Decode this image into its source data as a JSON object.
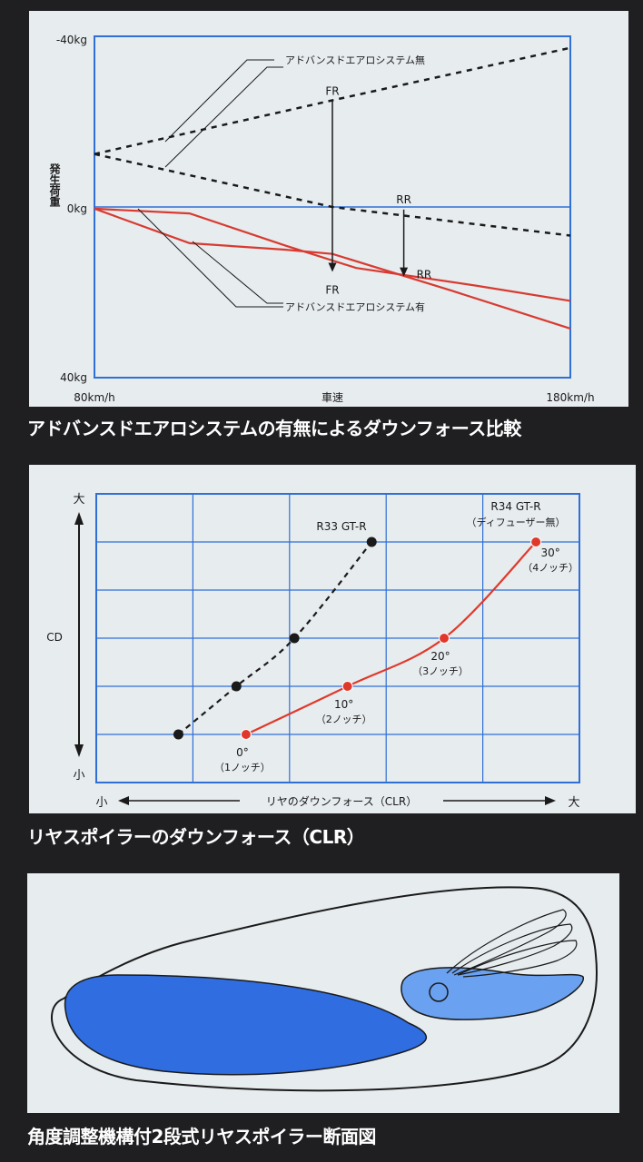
{
  "chart_data": [
    {
      "type": "line",
      "title": "",
      "caption": "アドバンスドエアロシステムの有無によるダウンフォース比較",
      "xlabel": "車速",
      "ylabel": "発生荷重",
      "x_ticks": [
        "80km/h",
        "180km/h"
      ],
      "y_ticks": [
        "-40kg",
        "0kg",
        "40kg"
      ],
      "xlim": [
        80,
        180
      ],
      "ylim": [
        -40,
        40
      ],
      "grid": false,
      "annotations": {
        "without": "アドバンスドエアロシステム無",
        "with": "アドバンスドエアロシステム有",
        "fr_top": "FR",
        "fr_bottom": "FR",
        "rr_top": "RR",
        "rr_bottom": "RR"
      },
      "series": [
        {
          "group": "without",
          "axle": "FR",
          "style": "dashed",
          "color": "#1a1a1a",
          "x": [
            80,
            130,
            180
          ],
          "y": [
            -12.4,
            -25,
            -37.3
          ]
        },
        {
          "group": "without",
          "axle": "RR",
          "style": "dashed",
          "color": "#1a1a1a",
          "x": [
            80,
            130,
            180
          ],
          "y": [
            -12.4,
            0,
            6.7
          ]
        },
        {
          "group": "with",
          "axle": "FR",
          "style": "solid",
          "color": "#d83a30",
          "x": [
            80,
            100,
            120,
            130,
            155,
            180
          ],
          "y": [
            0.4,
            8.5,
            10,
            11,
            19.6,
            28.5
          ]
        },
        {
          "group": "with",
          "axle": "RR",
          "style": "solid",
          "color": "#d83a30",
          "x": [
            80,
            100,
            120,
            135,
            160,
            180
          ],
          "y": [
            0.4,
            1.5,
            9,
            14.3,
            18.4,
            22
          ]
        }
      ],
      "arrows": [
        {
          "label": "FR",
          "x": 130,
          "from": -25,
          "to": 15.2
        },
        {
          "label": "RR",
          "x": 145,
          "from": 0.6,
          "to": 16.3
        }
      ]
    },
    {
      "type": "line",
      "title": "",
      "caption": "リヤスポイラーのダウンフォース（CLR）",
      "xlabel": "リヤのダウンフォース（CLR）",
      "ylabel": "CD",
      "x_ends": [
        "小",
        "大"
      ],
      "y_ends": [
        "大",
        "小"
      ],
      "grid": true,
      "series": [
        {
          "name": "R33 GT-R",
          "style": "dashed",
          "color": "#1a1a1a",
          "x": [
            0.85,
            1.45,
            2.05,
            2.85
          ],
          "y": [
            0,
            1,
            2,
            4
          ]
        },
        {
          "name": "R34 GT-R",
          "note": "（ディフューザー無）",
          "style": "solid",
          "color": "#e0392b",
          "x": [
            1.55,
            2.6,
            3.6,
            4.55
          ],
          "y": [
            0,
            1,
            2,
            4
          ]
        }
      ],
      "point_labels": [
        {
          "angle": "0°",
          "notch": "（1ノッチ）"
        },
        {
          "angle": "10°",
          "notch": "（2ノッチ）"
        },
        {
          "angle": "20°",
          "notch": "（3ノッチ）"
        },
        {
          "angle": "30°",
          "notch": "（4ノッチ）"
        }
      ]
    }
  ],
  "diagram": {
    "caption": "角度調整機構付2段式リヤスポイラー断面図",
    "colors": {
      "body": "#2f6de0",
      "wing": "#6aa1f0",
      "outline": "#1a1a1a"
    }
  }
}
